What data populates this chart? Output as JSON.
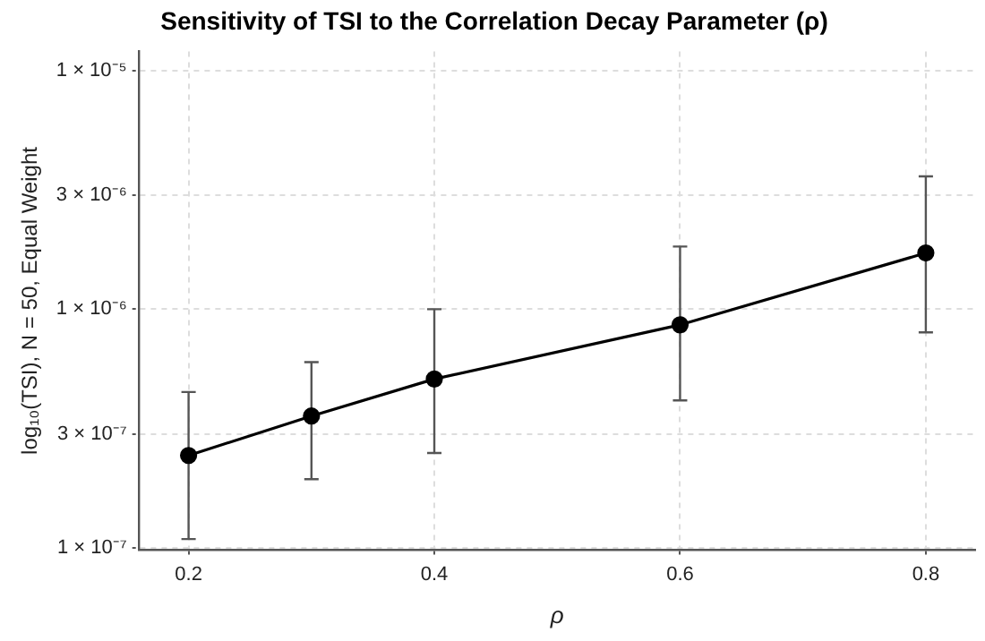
{
  "chart_data": {
    "type": "line",
    "title": "Sensitivity of TSI to the Correlation Decay Parameter (ρ)",
    "xlabel": "ρ",
    "ylabel": "log₁₀(TSI), N = 50, Equal Weight",
    "x": [
      0.2,
      0.3,
      0.4,
      0.6,
      0.8
    ],
    "series": [
      {
        "color": "#000000",
        "values": [
          2.44e-07,
          3.57e-07,
          5.1e-07,
          8.6e-07,
          1.72e-06
        ],
        "errors": [
          [
            1.09e-07,
            4.5e-07
          ],
          [
            1.94e-07,
            6e-07
          ],
          [
            2.5e-07,
            1e-06
          ],
          [
            4.15e-07,
            1.83e-06
          ],
          [
            8e-07,
            3.6e-06
          ]
        ]
      }
    ],
    "log": "y",
    "xlim": [
      0.16,
      0.84
    ],
    "xticks": [
      0.2,
      0.4,
      0.6,
      0.8
    ],
    "ylim": [
      9.8e-08,
      1.2e-05
    ],
    "yticks": [
      {
        "value": 1e-07,
        "label": "1 × 10⁻⁷"
      },
      {
        "value": 3e-07,
        "label": "3 × 10⁻⁷"
      },
      {
        "value": 1e-06,
        "label": "1 × 10⁻⁶"
      },
      {
        "value": 3e-06,
        "label": "3 × 10⁻⁶"
      },
      {
        "value": 1e-05,
        "label": "1 × 10⁻⁵"
      }
    ],
    "grid": true,
    "legend": false,
    "marker": "circle",
    "line_style": "solid"
  }
}
